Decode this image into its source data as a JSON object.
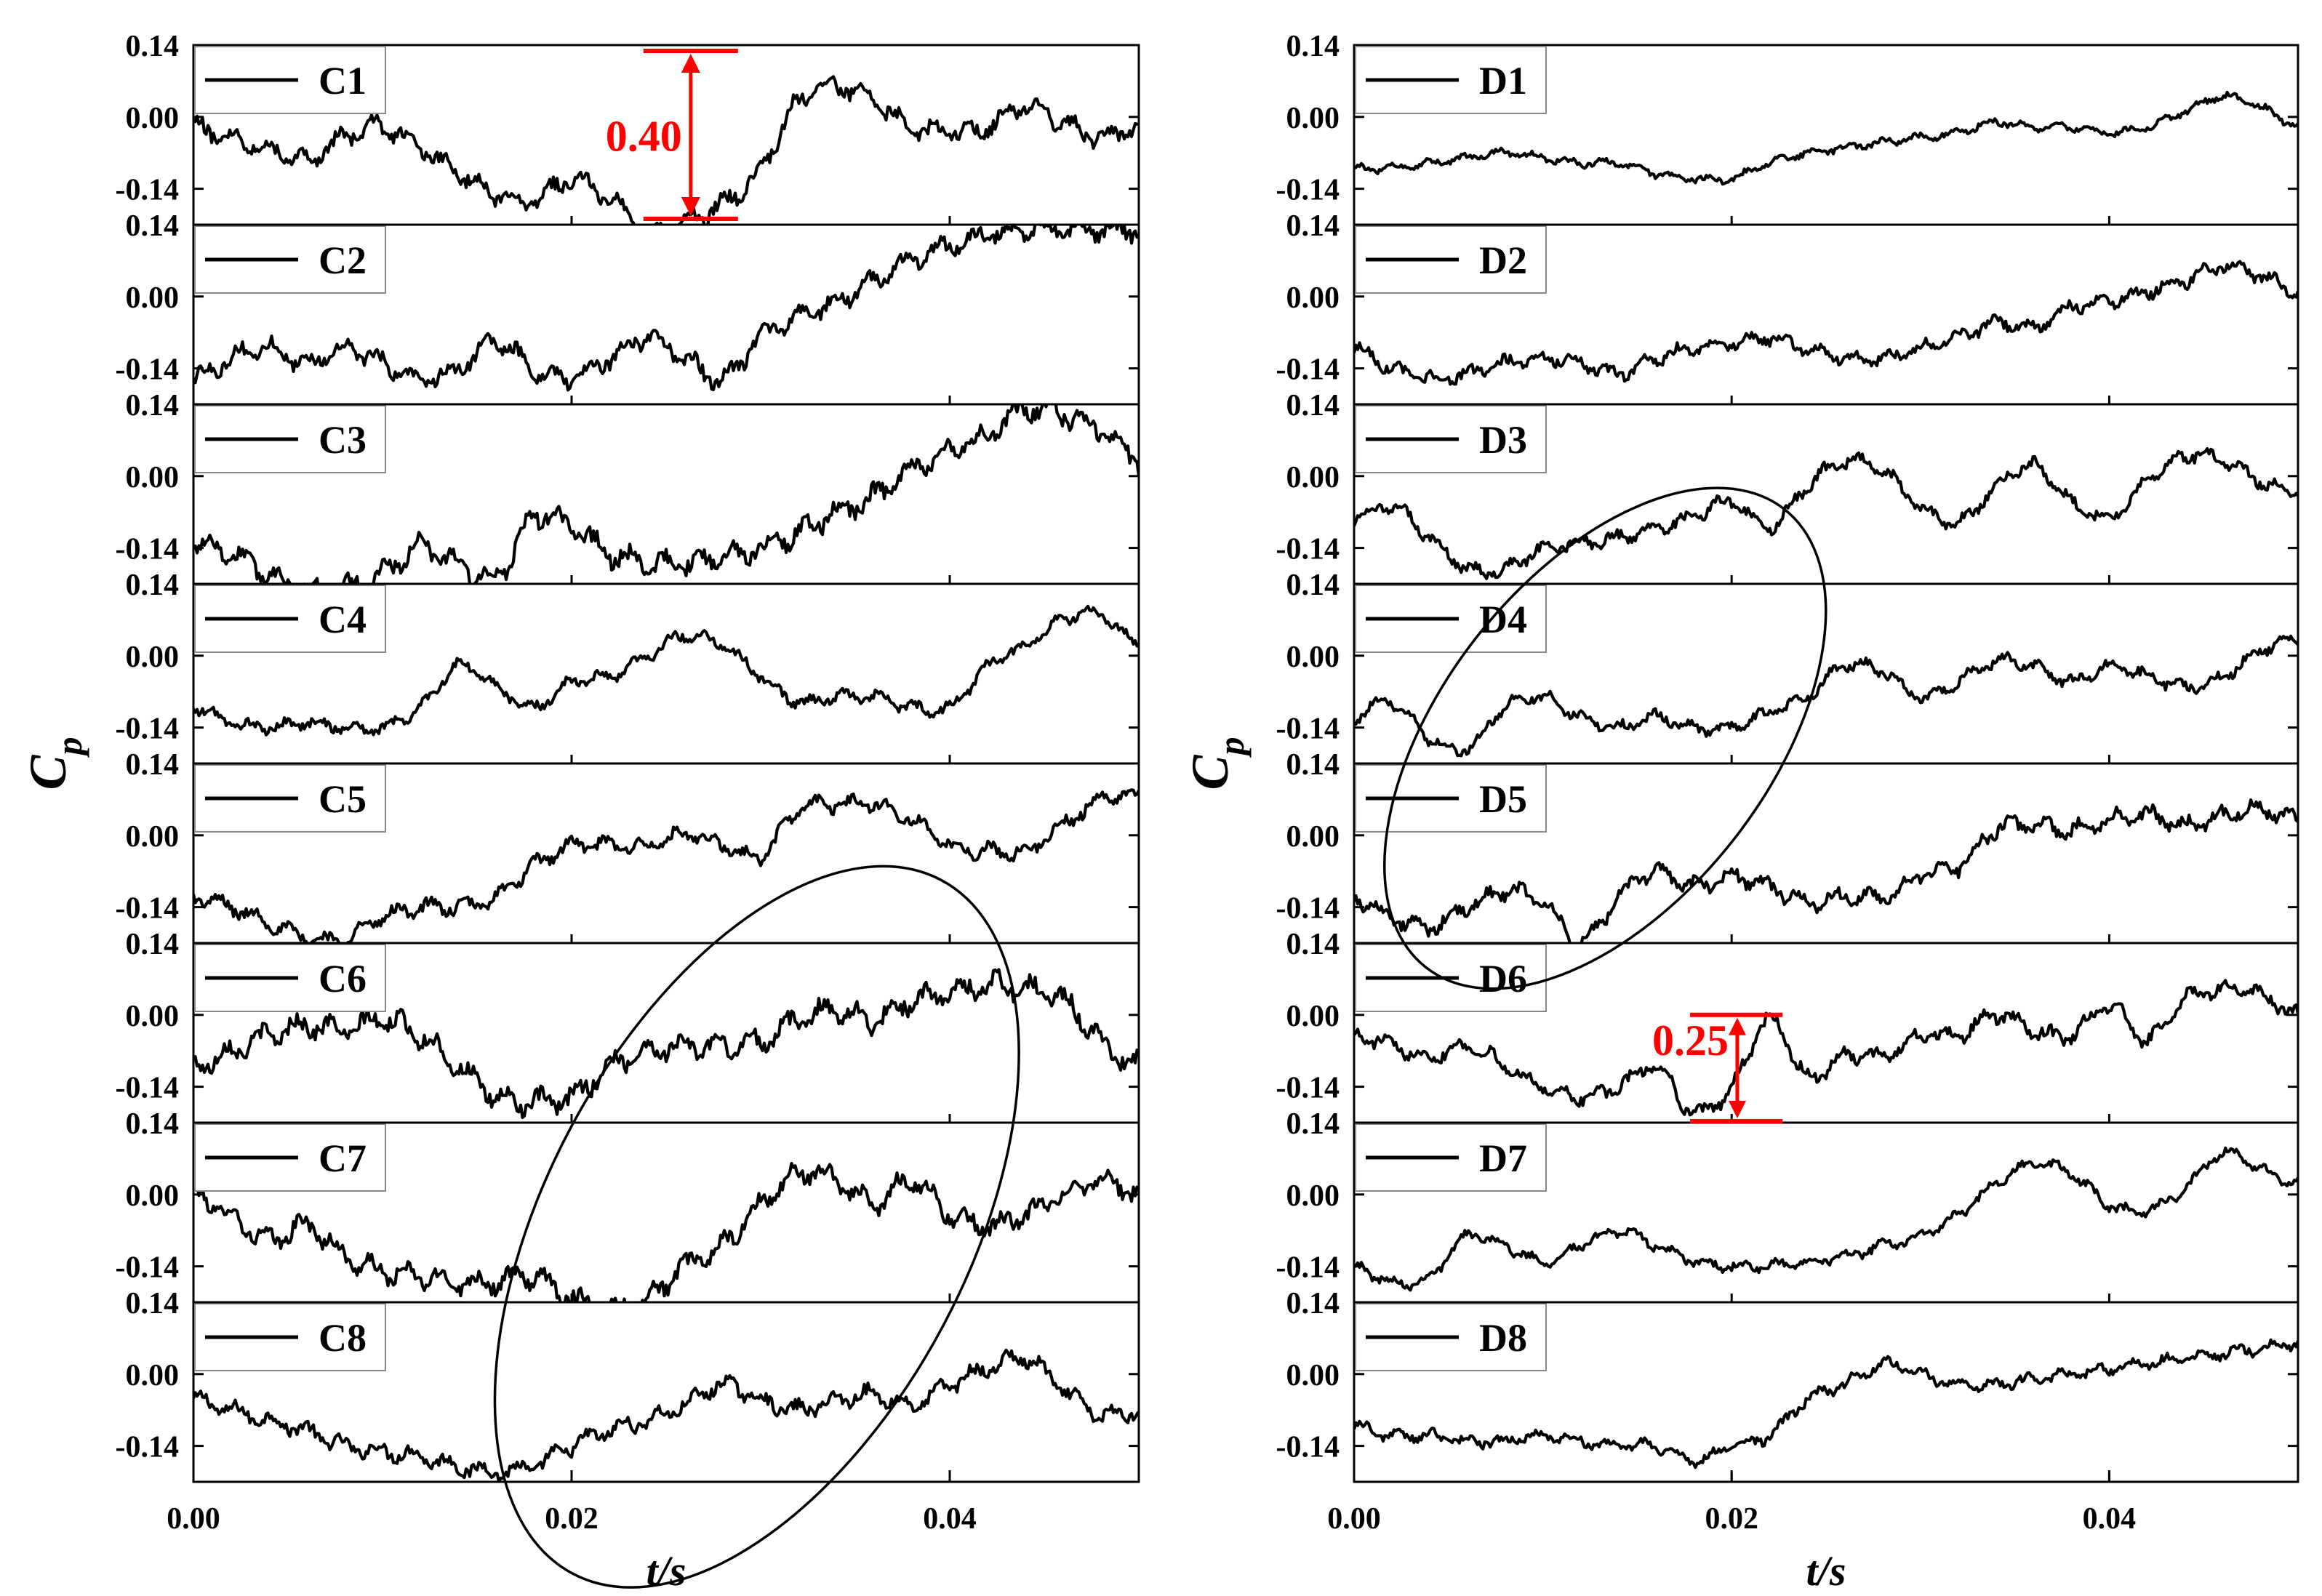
{
  "chart_data": [
    {
      "type": "line",
      "panel": "left",
      "xlabel": "t/s",
      "ylabel_main": "C",
      "ylabel_sub": "p",
      "xlim": [
        0,
        0.05
      ],
      "ylim": [
        -0.21,
        0.14
      ],
      "x_ticks": [
        "0.00",
        "0.02",
        "0.04"
      ],
      "x_tick_values": [
        0,
        0.02,
        0.04
      ],
      "y_ticks": [
        "0.14",
        "0.00",
        "-0.14"
      ],
      "y_tick_values": [
        0.14,
        0.0,
        -0.14
      ],
      "series": [
        {
          "name": "C8",
          "x": [
            0,
            0.002,
            0.004,
            0.006,
            0.008,
            0.01,
            0.012,
            0.014,
            0.016,
            0.018,
            0.02,
            0.022,
            0.024,
            0.026,
            0.028,
            0.03,
            0.032,
            0.034,
            0.036,
            0.038,
            0.04,
            0.042,
            0.044,
            0.046,
            0.048,
            0.05
          ],
          "y": [
            -0.05,
            -0.07,
            -0.09,
            -0.11,
            -0.14,
            -0.15,
            -0.16,
            -0.18,
            -0.19,
            -0.18,
            -0.14,
            -0.11,
            -0.09,
            -0.06,
            -0.02,
            -0.05,
            -0.07,
            -0.05,
            -0.04,
            -0.06,
            -0.02,
            0.01,
            0.03,
            -0.03,
            -0.08,
            -0.07
          ],
          "noise": 0.022
        },
        {
          "name": "C7",
          "x": [
            0,
            0.002,
            0.004,
            0.006,
            0.008,
            0.01,
            0.012,
            0.014,
            0.016,
            0.018,
            0.02,
            0.022,
            0.024,
            0.026,
            0.028,
            0.03,
            0.032,
            0.034,
            0.036,
            0.038,
            0.04,
            0.042,
            0.044,
            0.046,
            0.048,
            0.05
          ],
          "y": [
            0.0,
            -0.04,
            -0.09,
            -0.06,
            -0.12,
            -0.15,
            -0.16,
            -0.17,
            -0.17,
            -0.16,
            -0.2,
            -0.22,
            -0.2,
            -0.14,
            -0.1,
            -0.02,
            0.04,
            0.03,
            -0.02,
            0.03,
            -0.04,
            -0.06,
            -0.04,
            0.0,
            0.03,
            0.0
          ],
          "noise": 0.028
        },
        {
          "name": "C6",
          "x": [
            0,
            0.002,
            0.004,
            0.006,
            0.008,
            0.01,
            0.012,
            0.014,
            0.016,
            0.018,
            0.02,
            0.022,
            0.024,
            0.026,
            0.028,
            0.03,
            0.032,
            0.034,
            0.036,
            0.038,
            0.04,
            0.042,
            0.044,
            0.046,
            0.048,
            0.05
          ],
          "y": [
            -0.1,
            -0.07,
            -0.04,
            -0.02,
            -0.03,
            -0.01,
            -0.04,
            -0.1,
            -0.16,
            -0.17,
            -0.16,
            -0.1,
            -0.07,
            -0.06,
            -0.06,
            -0.05,
            -0.01,
            0.01,
            -0.01,
            0.03,
            0.04,
            0.06,
            0.05,
            0.03,
            -0.05,
            -0.1
          ],
          "noise": 0.03
        },
        {
          "name": "C5",
          "x": [
            0,
            0.002,
            0.004,
            0.006,
            0.008,
            0.01,
            0.012,
            0.014,
            0.016,
            0.018,
            0.02,
            0.022,
            0.024,
            0.026,
            0.028,
            0.03,
            0.032,
            0.034,
            0.036,
            0.038,
            0.04,
            0.042,
            0.044,
            0.046,
            0.048,
            0.05
          ],
          "y": [
            -0.12,
            -0.14,
            -0.17,
            -0.2,
            -0.2,
            -0.16,
            -0.14,
            -0.14,
            -0.12,
            -0.06,
            -0.02,
            -0.02,
            -0.02,
            0.0,
            -0.02,
            -0.04,
            0.05,
            0.06,
            0.06,
            0.03,
            -0.02,
            -0.03,
            -0.03,
            0.02,
            0.07,
            0.08
          ],
          "noise": 0.02
        },
        {
          "name": "C4",
          "x": [
            0,
            0.002,
            0.004,
            0.006,
            0.008,
            0.01,
            0.012,
            0.014,
            0.016,
            0.018,
            0.02,
            0.022,
            0.024,
            0.026,
            0.028,
            0.03,
            0.032,
            0.034,
            0.036,
            0.038,
            0.04,
            0.042,
            0.044,
            0.046,
            0.048,
            0.05
          ],
          "y": [
            -0.1,
            -0.13,
            -0.14,
            -0.13,
            -0.14,
            -0.14,
            -0.1,
            -0.02,
            -0.06,
            -0.1,
            -0.05,
            -0.04,
            0.0,
            0.04,
            0.02,
            -0.04,
            -0.09,
            -0.08,
            -0.08,
            -0.1,
            -0.1,
            -0.02,
            0.02,
            0.07,
            0.08,
            0.02
          ],
          "noise": 0.016
        },
        {
          "name": "C3",
          "x": [
            0,
            0.002,
            0.004,
            0.006,
            0.008,
            0.01,
            0.012,
            0.014,
            0.016,
            0.018,
            0.02,
            0.022,
            0.024,
            0.026,
            0.028,
            0.03,
            0.032,
            0.034,
            0.036,
            0.038,
            0.04,
            0.042,
            0.044,
            0.046,
            0.048,
            0.05
          ],
          "y": [
            -0.13,
            -0.15,
            -0.19,
            -0.22,
            -0.22,
            -0.19,
            -0.14,
            -0.17,
            -0.2,
            -0.08,
            -0.1,
            -0.15,
            -0.17,
            -0.17,
            -0.16,
            -0.14,
            -0.11,
            -0.07,
            -0.04,
            0.01,
            0.05,
            0.08,
            0.13,
            0.12,
            0.09,
            0.03
          ],
          "noise": 0.03
        },
        {
          "name": "C2",
          "x": [
            0,
            0.002,
            0.004,
            0.006,
            0.008,
            0.01,
            0.012,
            0.014,
            0.016,
            0.018,
            0.02,
            0.022,
            0.024,
            0.026,
            0.028,
            0.03,
            0.032,
            0.034,
            0.036,
            0.038,
            0.04,
            0.042,
            0.044,
            0.046,
            0.048,
            0.05
          ],
          "y": [
            -0.16,
            -0.12,
            -0.1,
            -0.13,
            -0.1,
            -0.13,
            -0.16,
            -0.14,
            -0.09,
            -0.14,
            -0.16,
            -0.12,
            -0.08,
            -0.12,
            -0.16,
            -0.08,
            -0.04,
            -0.01,
            0.03,
            0.07,
            0.1,
            0.12,
            0.13,
            0.13,
            0.13,
            0.13
          ],
          "noise": 0.025
        },
        {
          "name": "C1",
          "x": [
            0,
            0.002,
            0.004,
            0.006,
            0.008,
            0.01,
            0.012,
            0.014,
            0.016,
            0.018,
            0.02,
            0.022,
            0.024,
            0.026,
            0.028,
            0.03,
            0.032,
            0.034,
            0.036,
            0.038,
            0.04,
            0.042,
            0.044,
            0.046,
            0.048,
            0.05
          ],
          "y": [
            -0.02,
            -0.04,
            -0.06,
            -0.08,
            -0.04,
            -0.02,
            -0.06,
            -0.11,
            -0.15,
            -0.16,
            -0.12,
            -0.16,
            -0.22,
            -0.2,
            -0.17,
            -0.1,
            0.03,
            0.06,
            0.03,
            -0.02,
            -0.03,
            -0.02,
            0.02,
            -0.01,
            -0.04,
            -0.02
          ],
          "noise": 0.025
        }
      ],
      "annotations": [
        {
          "label": "0.40",
          "series": "C1"
        }
      ]
    },
    {
      "type": "line",
      "panel": "right",
      "xlabel": "t/s",
      "ylabel_main": "C",
      "ylabel_sub": "p",
      "xlim": [
        0,
        0.05
      ],
      "ylim": [
        -0.21,
        0.14
      ],
      "x_ticks": [
        "0.00",
        "0.02",
        "0.04"
      ],
      "x_tick_values": [
        0,
        0.02,
        0.04
      ],
      "y_ticks": [
        "0.14",
        "0.00",
        "-0.14"
      ],
      "y_tick_values": [
        0.14,
        0.0,
        -0.14
      ],
      "series": [
        {
          "name": "D8",
          "x": [
            0,
            0.002,
            0.004,
            0.006,
            0.008,
            0.01,
            0.012,
            0.014,
            0.016,
            0.018,
            0.02,
            0.022,
            0.024,
            0.026,
            0.028,
            0.03,
            0.032,
            0.034,
            0.036,
            0.038,
            0.04,
            0.042,
            0.044,
            0.046,
            0.048,
            0.05
          ],
          "y": [
            -0.1,
            -0.12,
            -0.12,
            -0.13,
            -0.13,
            -0.12,
            -0.13,
            -0.14,
            -0.14,
            -0.17,
            -0.14,
            -0.12,
            -0.05,
            -0.02,
            0.02,
            0.0,
            -0.02,
            -0.02,
            -0.01,
            0.0,
            0.01,
            0.02,
            0.03,
            0.04,
            0.05,
            0.06
          ],
          "noise": 0.015
        },
        {
          "name": "D7",
          "x": [
            0,
            0.002,
            0.004,
            0.006,
            0.008,
            0.01,
            0.012,
            0.014,
            0.016,
            0.018,
            0.02,
            0.022,
            0.024,
            0.026,
            0.028,
            0.03,
            0.032,
            0.034,
            0.036,
            0.038,
            0.04,
            0.042,
            0.044,
            0.046,
            0.048,
            0.05
          ],
          "y": [
            -0.14,
            -0.17,
            -0.16,
            -0.08,
            -0.1,
            -0.13,
            -0.1,
            -0.07,
            -0.1,
            -0.13,
            -0.14,
            -0.14,
            -0.13,
            -0.12,
            -0.1,
            -0.08,
            -0.04,
            0.02,
            0.06,
            0.04,
            -0.02,
            -0.03,
            0.01,
            0.08,
            0.05,
            0.02
          ],
          "noise": 0.014
        },
        {
          "name": "D6",
          "x": [
            0,
            0.002,
            0.004,
            0.006,
            0.008,
            0.01,
            0.012,
            0.014,
            0.016,
            0.018,
            0.02,
            0.022,
            0.024,
            0.026,
            0.028,
            0.03,
            0.032,
            0.034,
            0.036,
            0.038,
            0.04,
            0.042,
            0.044,
            0.046,
            0.048,
            0.05
          ],
          "y": [
            -0.04,
            -0.06,
            -0.08,
            -0.06,
            -0.1,
            -0.14,
            -0.16,
            -0.14,
            -0.1,
            -0.19,
            -0.14,
            -0.01,
            -0.12,
            -0.08,
            -0.08,
            -0.04,
            -0.04,
            0.0,
            -0.03,
            -0.04,
            0.02,
            -0.05,
            0.03,
            0.05,
            0.04,
            0.0
          ],
          "noise": 0.02
        },
        {
          "name": "D5",
          "x": [
            0,
            0.002,
            0.004,
            0.006,
            0.008,
            0.01,
            0.012,
            0.014,
            0.016,
            0.018,
            0.02,
            0.022,
            0.024,
            0.026,
            0.028,
            0.03,
            0.032,
            0.034,
            0.036,
            0.038,
            0.04,
            0.042,
            0.044,
            0.046,
            0.048,
            0.05
          ],
          "y": [
            -0.12,
            -0.16,
            -0.18,
            -0.14,
            -0.11,
            -0.13,
            -0.21,
            -0.12,
            -0.07,
            -0.1,
            -0.08,
            -0.1,
            -0.13,
            -0.12,
            -0.12,
            -0.08,
            -0.06,
            0.01,
            0.02,
            0.01,
            0.03,
            0.04,
            0.02,
            0.04,
            0.05,
            0.03
          ],
          "noise": 0.022
        },
        {
          "name": "D4",
          "x": [
            0,
            0.002,
            0.004,
            0.006,
            0.008,
            0.01,
            0.012,
            0.014,
            0.016,
            0.018,
            0.02,
            0.022,
            0.024,
            0.026,
            0.028,
            0.03,
            0.032,
            0.034,
            0.036,
            0.038,
            0.04,
            0.042,
            0.044,
            0.046,
            0.048,
            0.05
          ],
          "y": [
            -0.12,
            -0.09,
            -0.16,
            -0.18,
            -0.1,
            -0.08,
            -0.12,
            -0.14,
            -0.12,
            -0.14,
            -0.14,
            -0.11,
            -0.08,
            -0.02,
            -0.03,
            -0.08,
            -0.05,
            -0.01,
            -0.02,
            -0.05,
            -0.02,
            -0.04,
            -0.06,
            -0.04,
            0.01,
            0.03
          ],
          "noise": 0.016
        },
        {
          "name": "D3",
          "x": [
            0,
            0.002,
            0.004,
            0.006,
            0.008,
            0.01,
            0.012,
            0.014,
            0.016,
            0.018,
            0.02,
            0.022,
            0.024,
            0.026,
            0.028,
            0.03,
            0.032,
            0.034,
            0.036,
            0.038,
            0.04,
            0.042,
            0.044,
            0.046,
            0.048,
            0.05
          ],
          "y": [
            -0.08,
            -0.06,
            -0.12,
            -0.18,
            -0.18,
            -0.14,
            -0.13,
            -0.12,
            -0.1,
            -0.08,
            -0.05,
            -0.1,
            -0.02,
            0.03,
            0.01,
            -0.06,
            -0.09,
            -0.02,
            0.02,
            -0.05,
            -0.08,
            -0.01,
            0.04,
            0.03,
            -0.01,
            -0.03
          ],
          "noise": 0.018
        },
        {
          "name": "D2",
          "x": [
            0,
            0.002,
            0.004,
            0.006,
            0.008,
            0.01,
            0.012,
            0.014,
            0.016,
            0.018,
            0.02,
            0.022,
            0.024,
            0.026,
            0.028,
            0.03,
            0.032,
            0.034,
            0.036,
            0.038,
            0.04,
            0.042,
            0.044,
            0.046,
            0.048,
            0.05
          ],
          "y": [
            -0.1,
            -0.14,
            -0.16,
            -0.15,
            -0.13,
            -0.12,
            -0.13,
            -0.15,
            -0.12,
            -0.1,
            -0.09,
            -0.08,
            -0.1,
            -0.12,
            -0.12,
            -0.1,
            -0.08,
            -0.05,
            -0.06,
            -0.02,
            -0.01,
            0.01,
            0.03,
            0.06,
            0.04,
            0.01
          ],
          "noise": 0.018
        },
        {
          "name": "D1",
          "x": [
            0,
            0.002,
            0.004,
            0.006,
            0.008,
            0.01,
            0.012,
            0.014,
            0.016,
            0.018,
            0.02,
            0.022,
            0.024,
            0.026,
            0.028,
            0.03,
            0.032,
            0.034,
            0.036,
            0.038,
            0.04,
            0.042,
            0.044,
            0.046,
            0.048,
            0.05
          ],
          "y": [
            -0.1,
            -0.1,
            -0.09,
            -0.08,
            -0.07,
            -0.08,
            -0.09,
            -0.09,
            -0.11,
            -0.12,
            -0.12,
            -0.09,
            -0.07,
            -0.06,
            -0.05,
            -0.04,
            -0.03,
            -0.01,
            -0.02,
            -0.02,
            -0.03,
            -0.02,
            0.01,
            0.04,
            0.02,
            -0.02
          ],
          "noise": 0.01
        }
      ],
      "annotations": [
        {
          "label": "0.25",
          "series": "D6"
        }
      ]
    }
  ]
}
